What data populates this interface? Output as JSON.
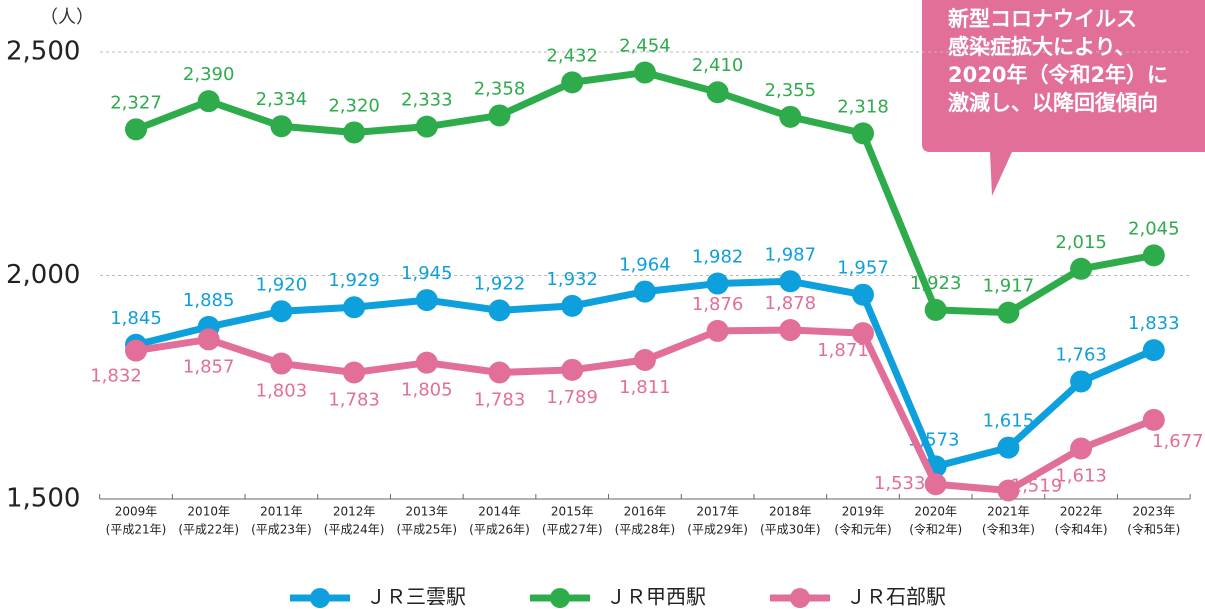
{
  "chart_data": {
    "type": "line",
    "y_unit": "（人）",
    "categories": [
      [
        "2009年",
        "(平成21年)"
      ],
      [
        "2010年",
        "(平成22年)"
      ],
      [
        "2011年",
        "(平成23年)"
      ],
      [
        "2012年",
        "(平成24年)"
      ],
      [
        "2013年",
        "(平成25年)"
      ],
      [
        "2014年",
        "(平成26年)"
      ],
      [
        "2015年",
        "(平成27年)"
      ],
      [
        "2016年",
        "(平成28年)"
      ],
      [
        "2017年",
        "(平成29年)"
      ],
      [
        "2018年",
        "(平成30年)"
      ],
      [
        "2019年",
        "(令和元年)"
      ],
      [
        "2020年",
        "(令和2年)"
      ],
      [
        "2021年",
        "(令和3年)"
      ],
      [
        "2022年",
        "(令和4年)"
      ],
      [
        "2023年",
        "(令和5年)"
      ]
    ],
    "series": [
      {
        "name": "ＪＲ三雲駅",
        "color": "#0ea0dc",
        "values": [
          1845,
          1885,
          1920,
          1929,
          1945,
          1922,
          1932,
          1964,
          1982,
          1987,
          1957,
          1573,
          1615,
          1763,
          1833
        ],
        "value_labels": [
          "1,845",
          "1,885",
          "1,920",
          "1,929",
          "1,945",
          "1,922",
          "1,932",
          "1,964",
          "1,982",
          "1,987",
          "1,957",
          "1,573",
          "1,615",
          "1,763",
          "1,833"
        ]
      },
      {
        "name": "ＪＲ甲西駅",
        "color": "#2eac4c",
        "values": [
          2327,
          2390,
          2334,
          2320,
          2333,
          2358,
          2432,
          2454,
          2410,
          2355,
          2318,
          1923,
          1917,
          2015,
          2045
        ],
        "value_labels": [
          "2,327",
          "2,390",
          "2,334",
          "2,320",
          "2,333",
          "2,358",
          "2,432",
          "2,454",
          "2,410",
          "2,355",
          "2,318",
          "1,923",
          "1,917",
          "2,015",
          "2,045"
        ]
      },
      {
        "name": "ＪＲ石部駅",
        "color": "#e26f99",
        "values": [
          1832,
          1857,
          1803,
          1783,
          1805,
          1783,
          1789,
          1811,
          1876,
          1878,
          1871,
          1533,
          1519,
          1613,
          1677
        ],
        "value_labels": [
          "1,832",
          "1,857",
          "1,803",
          "1,783",
          "1,805",
          "1,783",
          "1,789",
          "1,811",
          "1,876",
          "1,878",
          "1,871",
          "1,533",
          "1,519",
          "1,613",
          "1,677"
        ]
      }
    ],
    "ylim": [
      1500,
      2500
    ],
    "yticks": [
      {
        "value": 1500,
        "label": "1,500"
      },
      {
        "value": 2000,
        "label": "2,000"
      },
      {
        "value": 2500,
        "label": "2,500"
      }
    ],
    "grid": true,
    "annotation": [
      "新型コロナウイルス",
      "感染症拡大により、",
      "2020年（令和2年）に",
      "激減し、以降回復傾向"
    ]
  }
}
